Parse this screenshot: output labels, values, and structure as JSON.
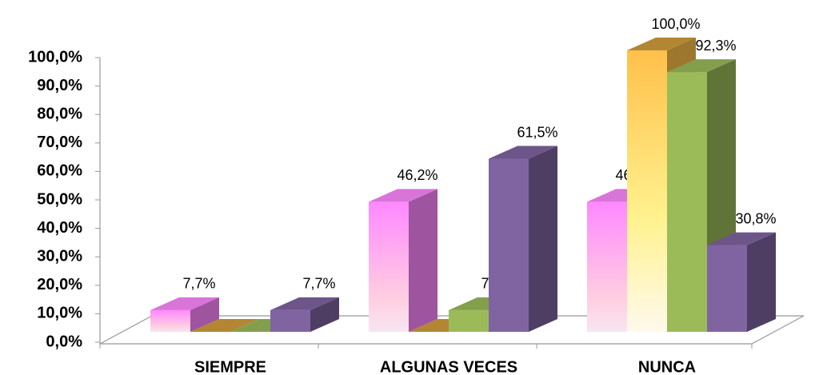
{
  "chart_data": {
    "type": "bar3d",
    "categories": [
      "SIEMPRE",
      "ALGUNAS VECES",
      "NUNCA"
    ],
    "series": [
      {
        "color": "#ff88ff",
        "values": [
          7.7,
          46.2,
          46.2
        ],
        "value_labels": [
          "7,7%",
          "46,2%",
          "46,2%"
        ]
      },
      {
        "color": "#ffc04a",
        "values": [
          0,
          0,
          100
        ],
        "value_labels": [
          null,
          null,
          "100,0%"
        ]
      },
      {
        "color": "#9bbb59",
        "values": [
          0,
          7.7,
          92.3
        ],
        "value_labels": [
          null,
          "7,7%",
          "92,3%"
        ]
      },
      {
        "color": "#8064a2",
        "values": [
          7.7,
          61.5,
          30.8
        ],
        "value_labels": [
          "7,7%",
          "61,5%",
          "30,8%"
        ]
      }
    ],
    "ylim": [
      0,
      100
    ],
    "yticks": [
      {
        "value": 0,
        "label": "0,0%"
      },
      {
        "value": 10,
        "label": "10,0%"
      },
      {
        "value": 20,
        "label": "20,0%"
      },
      {
        "value": 30,
        "label": "30,0%"
      },
      {
        "value": 40,
        "label": "40,0%"
      },
      {
        "value": 50,
        "label": "50,0%"
      },
      {
        "value": 60,
        "label": "60,0%"
      },
      {
        "value": 70,
        "label": "70,0%"
      },
      {
        "value": 80,
        "label": "80,0%"
      },
      {
        "value": 90,
        "label": "90,0%"
      },
      {
        "value": 100,
        "label": "100,0%"
      }
    ]
  }
}
